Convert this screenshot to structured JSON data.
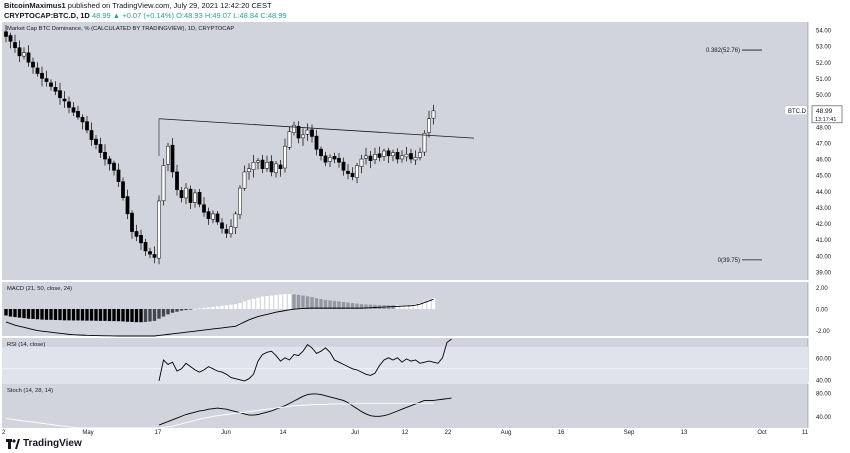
{
  "header": {
    "publisher_line_author": "BitcoinMaximus1",
    "publisher_line_rest": "published on TradingView.com, July 29, 2021 12:42:20 CEST",
    "symbol": "CRYPTOCAP:BTC.D, 1D",
    "change": "48.99 ▲ +0.07 (+0.14%)",
    "ohlc": "O:48.93 H:49.07 L:48.84 C:48.99"
  },
  "chart_data": [
    {
      "type": "candlestick",
      "title": "Market Cap BTC Dominance, % (CALCULATED BY TRADINGVIEW), 1D, CRYPTOCAP",
      "ylim": [
        38.5,
        54.5
      ],
      "y_ticks": [
        "54.00",
        "53.00",
        "52.00",
        "51.00",
        "50.00",
        "49.00",
        "48.00",
        "47.00",
        "46.00",
        "45.00",
        "44.00",
        "43.00",
        "42.00",
        "41.00",
        "40.00",
        "39.00"
      ],
      "x_ticks": [
        "2",
        "May",
        "17",
        "Jun",
        "14",
        "Jul",
        "12",
        "22",
        "Aug",
        "16",
        "Sep",
        "13",
        "Oct",
        "11"
      ],
      "closes": [
        53.6,
        53.3,
        52.9,
        52.4,
        52.6,
        52.0,
        51.7,
        51.3,
        51.0,
        50.8,
        50.5,
        50.2,
        49.8,
        49.6,
        49.2,
        48.9,
        48.6,
        48.3,
        47.8,
        47.2,
        46.9,
        46.4,
        46.0,
        45.7,
        45.3,
        44.6,
        43.6,
        42.6,
        41.5,
        41.2,
        40.8,
        40.3,
        40.1,
        39.9,
        43.4,
        45.6,
        46.8,
        45.2,
        44.1,
        43.6,
        44.2,
        43.3,
        43.9,
        43.2,
        42.7,
        42.3,
        42.6,
        42.1,
        41.7,
        41.4,
        41.8,
        42.6,
        44.2,
        45.2,
        45.4,
        45.8,
        45.9,
        45.4,
        45.8,
        45.2,
        45.7,
        45.4,
        46.8,
        47.7,
        48.1,
        47.3,
        47.5,
        47.8,
        47.4,
        46.6,
        46.2,
        45.8,
        46.1,
        46.0,
        45.8,
        45.3,
        45.1,
        44.9,
        45.6,
        46.0,
        46.2,
        45.9,
        46.3,
        46.1,
        46.5,
        46.2,
        46.4,
        46.0,
        46.2,
        46.3,
        46.0,
        46.1,
        46.4,
        47.6,
        48.5,
        48.99
      ],
      "series": [
        {
          "name": "BTC.D",
          "last": "48.99",
          "timer": "13:17:41"
        }
      ],
      "fib_levels": [
        {
          "label": "0.382(52.76)",
          "value": 52.76
        },
        {
          "label": "0(39.75)",
          "value": 39.75
        }
      ],
      "trendline": {
        "from": {
          "bar": 34,
          "value": 48.5
        },
        "to": {
          "bar": 104,
          "value": 47.3
        }
      },
      "colors": {
        "up": "#ffffff",
        "down": "#000000",
        "background": "#d1d4dc"
      }
    },
    {
      "type": "histogram",
      "title": "MACD (21, 50, close, 24)",
      "y_ticks": [
        "2.00",
        "0.00",
        "-2.00"
      ],
      "ylim": [
        -2.5,
        2.5
      ],
      "histogram": [
        -0.6,
        -0.7,
        -0.75,
        -0.8,
        -0.85,
        -0.9,
        -0.92,
        -0.95,
        -0.98,
        -1.0,
        -1.0,
        -1.02,
        -1.03,
        -1.05,
        -1.05,
        -1.06,
        -1.06,
        -1.07,
        -1.08,
        -1.08,
        -1.09,
        -1.1,
        -1.1,
        -1.12,
        -1.12,
        -1.13,
        -1.15,
        -1.18,
        -1.2,
        -1.22,
        -1.22,
        -1.2,
        -1.15,
        -1.1,
        -0.9,
        -0.7,
        -0.5,
        -0.35,
        -0.25,
        -0.15,
        -0.1,
        -0.05,
        0.0,
        0.05,
        0.1,
        0.15,
        0.2,
        0.25,
        0.3,
        0.35,
        0.4,
        0.45,
        0.55,
        0.7,
        0.85,
        0.95,
        1.05,
        1.15,
        1.2,
        1.25,
        1.3,
        1.35,
        1.38,
        1.38,
        1.35,
        1.3,
        1.25,
        1.18,
        1.1,
        1.0,
        0.92,
        0.85,
        0.8,
        0.75,
        0.7,
        0.65,
        0.6,
        0.55,
        0.5,
        0.45,
        0.42,
        0.4,
        0.38,
        0.36,
        0.35,
        0.34,
        0.33,
        0.33,
        0.34,
        0.36,
        0.4,
        0.45,
        0.55,
        0.7,
        0.85,
        1.0
      ],
      "line": [
        -1.2,
        -1.35,
        -1.5,
        -1.6,
        -1.7,
        -1.8,
        -1.9,
        -2.0,
        -2.05,
        -2.1,
        -2.15,
        -2.2,
        -2.25,
        -2.3,
        -2.35,
        -2.38,
        -2.4,
        -2.42,
        -2.44,
        -2.45,
        -2.46,
        -2.47,
        -2.48,
        -2.48,
        -2.49,
        -2.5,
        -2.5,
        -2.5,
        -2.5,
        -2.5,
        -2.5,
        -2.5,
        -2.5,
        -2.5,
        -2.45,
        -2.4,
        -2.35,
        -2.3,
        -2.25,
        -2.2,
        -2.15,
        -2.1,
        -2.05,
        -2.0,
        -1.95,
        -1.9,
        -1.85,
        -1.8,
        -1.75,
        -1.7,
        -1.65,
        -1.6,
        -1.4,
        -1.2,
        -1.0,
        -0.85,
        -0.7,
        -0.6,
        -0.5,
        -0.4,
        -0.3,
        -0.22,
        -0.15,
        -0.08,
        -0.02,
        0.02,
        0.05,
        0.07,
        0.08,
        0.08,
        0.08,
        0.08,
        0.08,
        0.08,
        0.08,
        0.08,
        0.08,
        0.08,
        0.08,
        0.08,
        0.1,
        0.12,
        0.14,
        0.16,
        0.18,
        0.2,
        0.22,
        0.24,
        0.26,
        0.28,
        0.3,
        0.35,
        0.45,
        0.6,
        0.75,
        0.9
      ]
    },
    {
      "type": "line",
      "title": "RSI (14, close)",
      "y_ticks": [
        "60.00",
        "40.00"
      ],
      "ylim": [
        38,
        78
      ],
      "start_bar": 34,
      "values": [
        39,
        58,
        54,
        56,
        48,
        50,
        55,
        52,
        49,
        47,
        49,
        52,
        50,
        48,
        47,
        45,
        42,
        41,
        40,
        39,
        41,
        45,
        57,
        63,
        65,
        66,
        62,
        57,
        60,
        58,
        63,
        62,
        66,
        72,
        69,
        64,
        66,
        69,
        65,
        58,
        56,
        54,
        52,
        50,
        49,
        47,
        45,
        44,
        46,
        53,
        58,
        60,
        58,
        60,
        56,
        59,
        57,
        58,
        55,
        56,
        57,
        56,
        55,
        60,
        74,
        77
      ]
    },
    {
      "type": "line",
      "title": "Stoch (14, 28, 14)",
      "y_ticks": [
        "80.00",
        "40.00"
      ],
      "ylim": [
        20,
        95
      ],
      "series": [
        {
          "start_bar": 34,
          "values": [
            25,
            28,
            31,
            34,
            37,
            40,
            43,
            45,
            47,
            49,
            50,
            52,
            53,
            54,
            53,
            52,
            50,
            48,
            46,
            44,
            42,
            42,
            43,
            45,
            47,
            49,
            52,
            55,
            58,
            62,
            66,
            70,
            74,
            77,
            78,
            78,
            77,
            75,
            73,
            71,
            69,
            67,
            63,
            58,
            53,
            48,
            44,
            41,
            40,
            40,
            41,
            43,
            46,
            49,
            52,
            55,
            58,
            61,
            64,
            67,
            67,
            67,
            68,
            69,
            70,
            71
          ]
        },
        {
          "start_bar": 0,
          "values": [
            36,
            35,
            34,
            33,
            32,
            31,
            30,
            29,
            28,
            27,
            26,
            25,
            24,
            23,
            22,
            21,
            20,
            20,
            20,
            20,
            20,
            20,
            20,
            20,
            20,
            20,
            20,
            20,
            20,
            20,
            20,
            20,
            20,
            20,
            20,
            21,
            22,
            23,
            25,
            27,
            29,
            31,
            33,
            35,
            37,
            38,
            40,
            41,
            42,
            43,
            44,
            45,
            46,
            47,
            48,
            49,
            50,
            51,
            52,
            53,
            54,
            55,
            56,
            57,
            58,
            58,
            59,
            59,
            60,
            60,
            60,
            60,
            61,
            61,
            61,
            61,
            61,
            61,
            62,
            62,
            62,
            62,
            62,
            62,
            62,
            62,
            62,
            62,
            62,
            62,
            62,
            62,
            62,
            62,
            62,
            62
          ]
        }
      ]
    }
  ],
  "footer": {
    "brand": "TradingView"
  }
}
